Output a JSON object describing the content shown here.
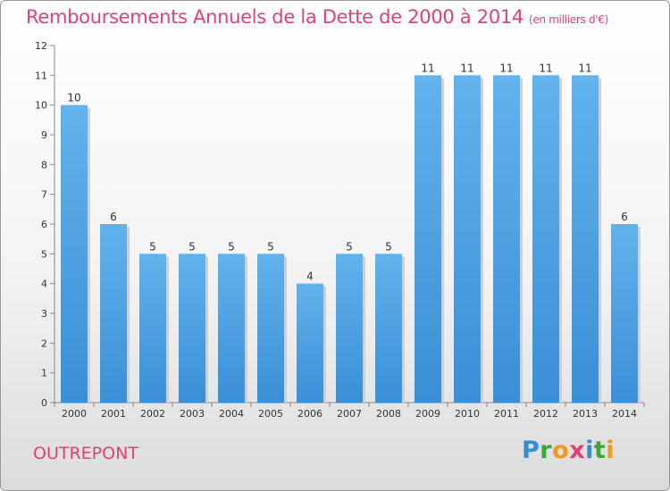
{
  "title": "Remboursements Annuels de la Dette de 2000 à 2014",
  "unit": "(en milliers d'€)",
  "commune": "OUTREPONT",
  "logo": "Proxiti",
  "colors": {
    "bar": "#3a8fd6",
    "bar_light": "#62b2ec",
    "title": "#e0407a"
  },
  "chart_data": {
    "type": "bar",
    "categories": [
      "2000",
      "2001",
      "2002",
      "2003",
      "2004",
      "2005",
      "2006",
      "2007",
      "2008",
      "2009",
      "2010",
      "2011",
      "2012",
      "2013",
      "2014"
    ],
    "values": [
      10,
      6,
      5,
      5,
      5,
      5,
      4,
      5,
      5,
      11,
      11,
      11,
      11,
      11,
      6
    ],
    "ylim": [
      0,
      12
    ],
    "yticks": [
      0,
      1,
      2,
      3,
      4,
      5,
      6,
      7,
      8,
      9,
      10,
      11,
      12
    ],
    "grid": false
  }
}
